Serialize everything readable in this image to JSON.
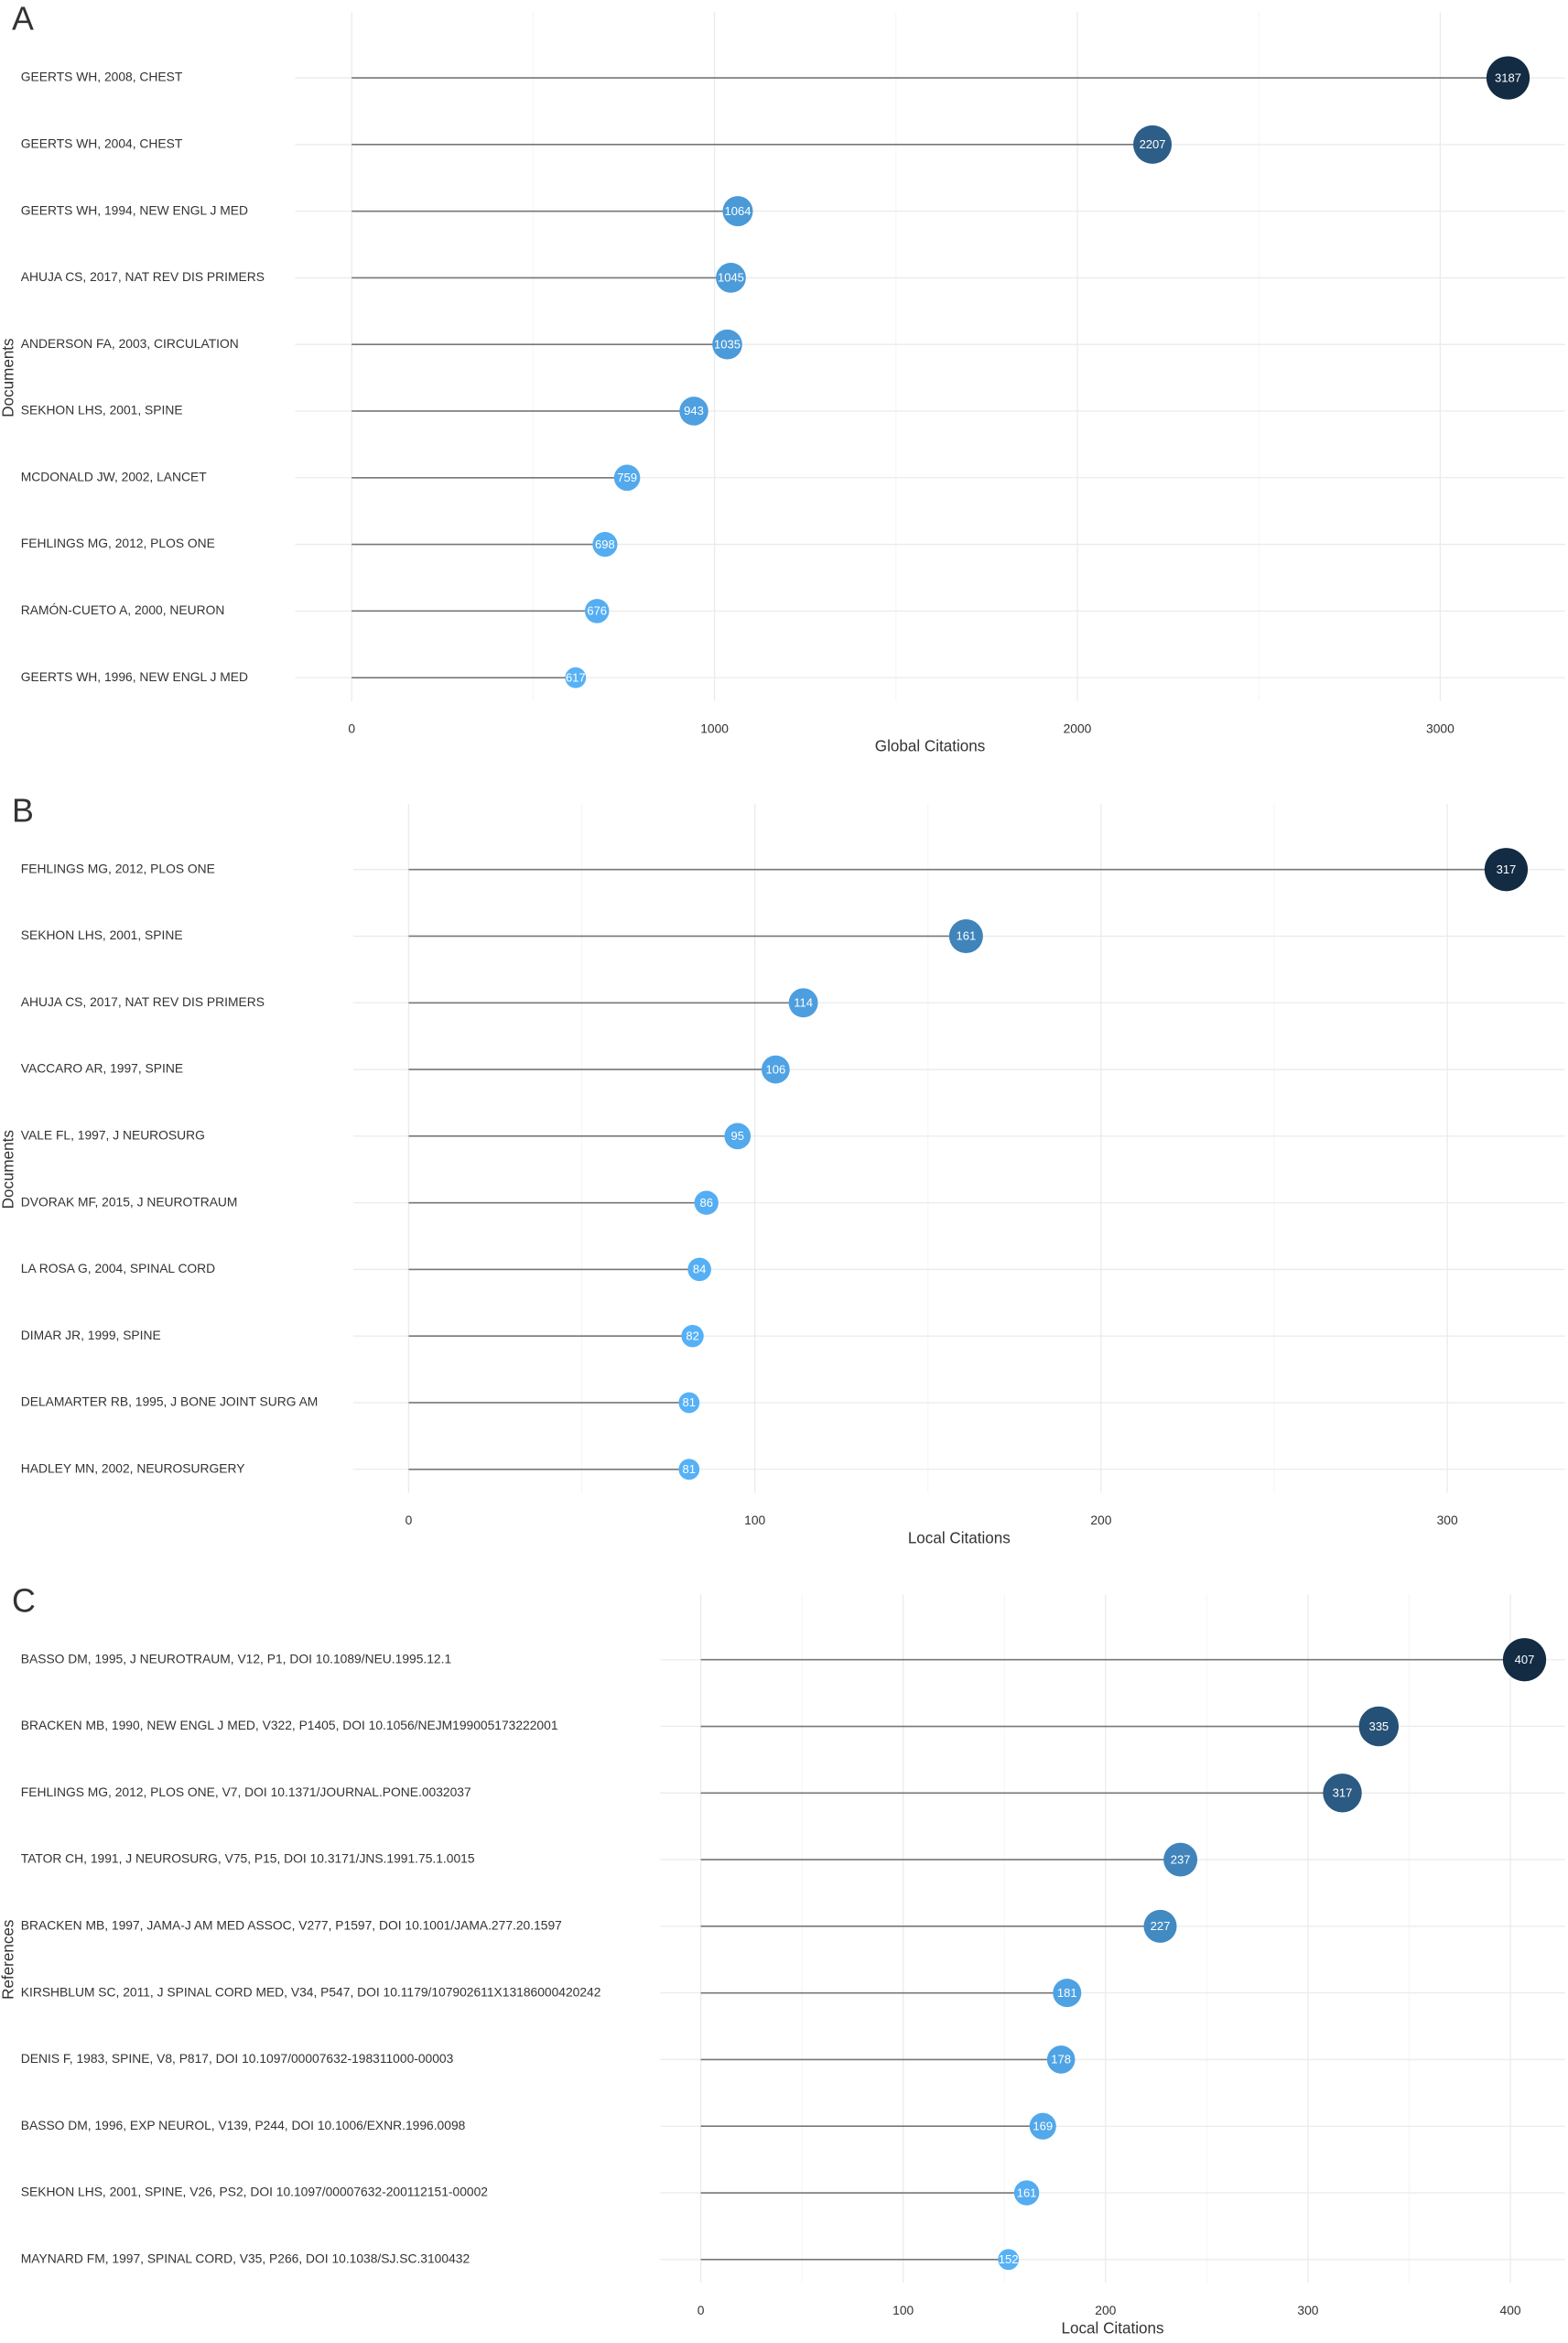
{
  "chart_data": [
    {
      "type": "lollipop",
      "panel": "A",
      "x_label": "Global Citations",
      "y_label": "Documents",
      "categories": [
        "GEERTS WH, 2008, CHEST",
        "GEERTS WH, 2004, CHEST",
        "GEERTS WH, 1994, NEW ENGL J MED",
        "AHUJA CS, 2017, NAT REV DIS PRIMERS",
        "ANDERSON FA, 2003, CIRCULATION",
        "SEKHON LHS, 2001, SPINE",
        "MCDONALD JW, 2002, LANCET",
        "FEHLINGS MG, 2012, PLOS ONE",
        "RAMÓN-CUETO A, 2000, NEURON",
        "GEERTS WH, 1996, NEW ENGL J MED"
      ],
      "values": [
        3187,
        2207,
        1064,
        1045,
        1035,
        943,
        759,
        698,
        676,
        617
      ],
      "xlim": [
        -156,
        3344
      ],
      "xticks": [
        0,
        1000,
        2000,
        3000
      ],
      "grid": true,
      "color_low": "#56b1f7",
      "color_high": "#132b43"
    },
    {
      "type": "lollipop",
      "panel": "B",
      "x_label": "Local Citations",
      "y_label": "Documents",
      "categories": [
        "FEHLINGS MG, 2012, PLOS ONE",
        "SEKHON LHS, 2001, SPINE",
        "AHUJA CS, 2017, NAT REV DIS PRIMERS",
        "VACCARO AR, 1997, SPINE",
        "VALE FL, 1997, J NEUROSURG",
        "DVORAK MF, 2015, J NEUROTRAUM",
        "LA ROSA G, 2004, SPINAL CORD",
        "DIMAR JR, 1999, SPINE",
        "DELAMARTER RB, 1995, J BONE JOINT SURG AM",
        "HADLEY MN, 2002, NEUROSURGERY"
      ],
      "values": [
        317,
        161,
        114,
        106,
        95,
        86,
        84,
        82,
        81,
        81
      ],
      "xlim": [
        -16,
        334
      ],
      "xticks": [
        0,
        100,
        200,
        300
      ],
      "grid": true,
      "color_low": "#56b1f7",
      "color_high": "#132b43"
    },
    {
      "type": "lollipop",
      "panel": "C",
      "x_label": "Local Citations",
      "y_label": "References",
      "categories": [
        "BASSO DM, 1995, J NEUROTRAUM, V12, P1, DOI 10.1089/NEU.1995.12.1",
        "BRACKEN MB, 1990, NEW ENGL J MED, V322, P1405, DOI 10.1056/NEJM199005173222001",
        "FEHLINGS MG, 2012, PLOS ONE, V7, DOI 10.1371/JOURNAL.PONE.0032037",
        "TATOR CH, 1991, J NEUROSURG, V75, P15, DOI 10.3171/JNS.1991.75.1.0015",
        "BRACKEN MB, 1997, JAMA-J AM MED ASSOC, V277, P1597, DOI 10.1001/JAMA.277.20.1597",
        "KIRSHBLUM SC, 2011, J SPINAL CORD MED, V34, P547, DOI 10.1179/107902611X13186000420242",
        "DENIS F, 1983, SPINE, V8, P817, DOI 10.1097/00007632-198311000-00003",
        "BASSO DM, 1996, EXP NEUROL, V139, P244, DOI 10.1006/EXNR.1996.0098",
        "SEKHON LHS, 2001, SPINE, V26, PS2, DOI 10.1097/00007632-200112151-00002",
        "MAYNARD FM, 1997, SPINAL CORD, V35, P266, DOI 10.1038/SJ.SC.3100432"
      ],
      "values": [
        407,
        335,
        317,
        237,
        227,
        181,
        178,
        169,
        161,
        152
      ],
      "xlim": [
        -20,
        427
      ],
      "xticks": [
        0,
        100,
        200,
        300,
        400
      ],
      "grid": true,
      "color_low": "#56b1f7",
      "color_high": "#132b43"
    }
  ]
}
